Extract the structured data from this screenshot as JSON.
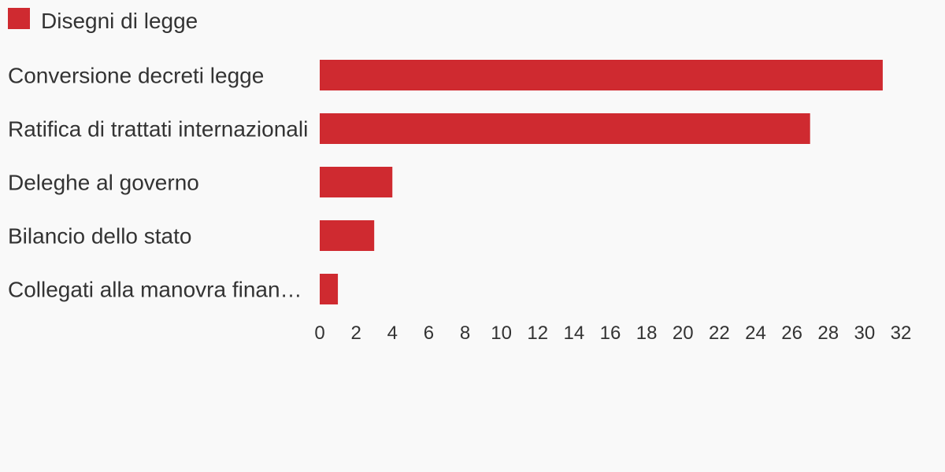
{
  "chart_data": {
    "type": "bar",
    "orientation": "horizontal",
    "series": [
      {
        "name": "Disegni di legge",
        "color": "#cf2a30",
        "values": [
          31,
          27,
          4,
          3,
          1
        ]
      }
    ],
    "categories": [
      "Conversione decreti legge",
      "Ratifica di trattati internazionali",
      "Deleghe al governo",
      "Bilancio dello stato",
      "Collegati alla manovra finan…"
    ],
    "xlim": [
      0,
      32
    ],
    "x_ticks": [
      0,
      2,
      4,
      6,
      8,
      10,
      12,
      14,
      16,
      18,
      20,
      22,
      24,
      26,
      28,
      30,
      32
    ],
    "grid": false,
    "legend_position": "top-left"
  }
}
